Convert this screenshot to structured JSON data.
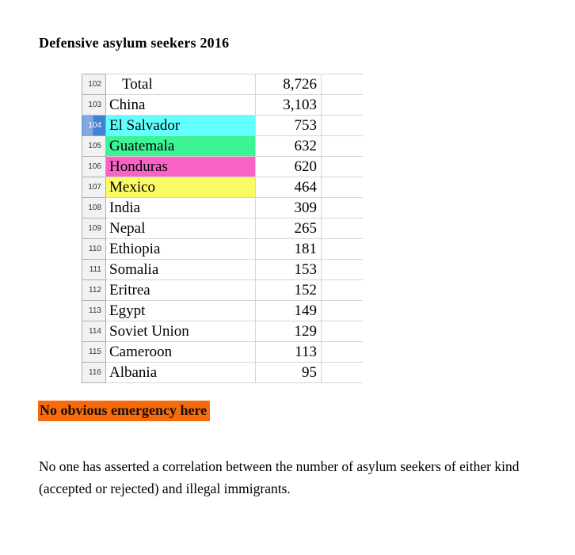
{
  "page": {
    "title": "Defensive asylum seekers 2016"
  },
  "table": {
    "rows": [
      {
        "row_num": "102",
        "name": "Total",
        "value": "8,726",
        "highlight": null,
        "selected": false,
        "indent": true
      },
      {
        "row_num": "103",
        "name": "China",
        "value": "3,103",
        "highlight": null,
        "selected": false,
        "indent": false
      },
      {
        "row_num": "104",
        "name": "El Salvador",
        "value": "753",
        "highlight": "#63FFFF",
        "selected": true,
        "indent": false
      },
      {
        "row_num": "105",
        "name": "Guatemala",
        "value": "632",
        "highlight": "#3CF494",
        "selected": false,
        "indent": false
      },
      {
        "row_num": "106",
        "name": "Honduras",
        "value": "620",
        "highlight": "#F864C6",
        "selected": false,
        "indent": false
      },
      {
        "row_num": "107",
        "name": "Mexico",
        "value": "464",
        "highlight": "#FBFB65",
        "selected": false,
        "indent": false
      },
      {
        "row_num": "108",
        "name": "India",
        "value": "309",
        "highlight": null,
        "selected": false,
        "indent": false
      },
      {
        "row_num": "109",
        "name": "Nepal",
        "value": "265",
        "highlight": null,
        "selected": false,
        "indent": false
      },
      {
        "row_num": "110",
        "name": "Ethiopia",
        "value": "181",
        "highlight": null,
        "selected": false,
        "indent": false
      },
      {
        "row_num": "111",
        "name": "Somalia",
        "value": "153",
        "highlight": null,
        "selected": false,
        "indent": false
      },
      {
        "row_num": "112",
        "name": "Eritrea",
        "value": "152",
        "highlight": null,
        "selected": false,
        "indent": false
      },
      {
        "row_num": "113",
        "name": "Egypt",
        "value": "149",
        "highlight": null,
        "selected": false,
        "indent": false
      },
      {
        "row_num": "114",
        "name": "Soviet Union",
        "value": "129",
        "highlight": null,
        "selected": false,
        "indent": false
      },
      {
        "row_num": "115",
        "name": "Cameroon",
        "value": "113",
        "highlight": null,
        "selected": false,
        "indent": false
      },
      {
        "row_num": "116",
        "name": "Albania",
        "value": "95",
        "highlight": null,
        "selected": false,
        "indent": false
      }
    ]
  },
  "note": {
    "text": "No obvious emergency here",
    "bg_color": "#F66B0C"
  },
  "paragraph": {
    "text": "No one has asserted a correlation between the number of asylum seekers of either kind (accepted or rejected) and illegal immigrants."
  },
  "colors": {
    "highlight_cyan": "#63FFFF",
    "highlight_green": "#3CF494",
    "highlight_pink": "#F864C6",
    "highlight_yellow": "#FBFB65",
    "note_orange": "#F66B0C",
    "selected_row_light_blue": "#7FA9E0",
    "selected_row_dark_blue": "#4181D2"
  }
}
